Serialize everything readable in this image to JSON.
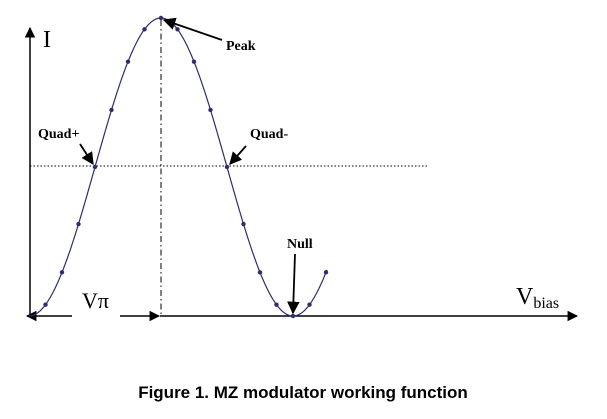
{
  "axis_labels": {
    "y": "I",
    "x_main": "V",
    "x_sub": "bias"
  },
  "annotations": {
    "peak": "Peak",
    "quad_plus": "Quad+",
    "quad_minus": "Quad-",
    "null": "Null",
    "v_pi": "Vπ"
  },
  "caption": "Figure 1. MZ modulator working function"
}
